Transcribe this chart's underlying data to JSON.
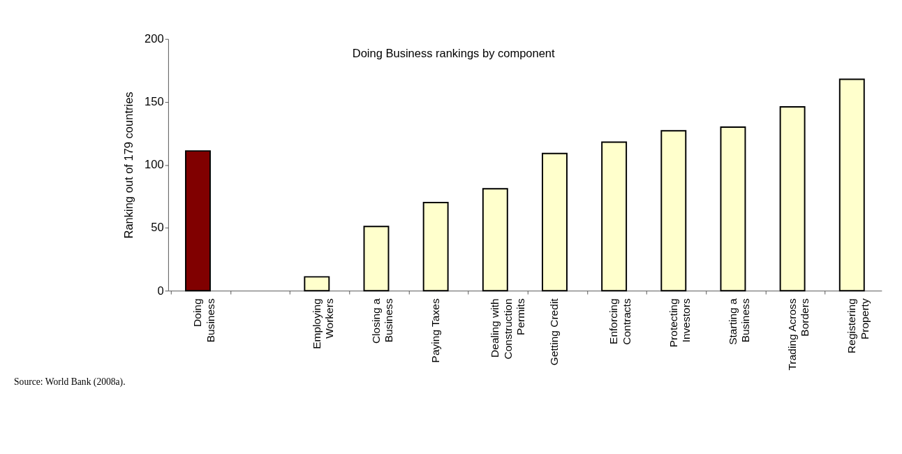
{
  "chart_data": {
    "type": "bar",
    "title": "Doing Business rankings by component",
    "ylabel": "Ranking out of 179 countries",
    "categories": [
      "Doing\nBusiness",
      null,
      "Employing\nWorkers",
      "Closing a\nBusiness",
      "Paying Taxes",
      "Dealing with\nConstruction\nPermits",
      "Getting Credit",
      "Enforcing\nContracts",
      "Protecting\nInvestors",
      "Starting a\nBusiness",
      "Trading Across\nBorders",
      "Registering\nProperty"
    ],
    "values": [
      111,
      null,
      11,
      51,
      70,
      81,
      109,
      118,
      127,
      130,
      146,
      168
    ],
    "colors": [
      "#800000",
      "#ffffcc",
      "#ffffcc",
      "#ffffcc",
      "#ffffcc",
      "#ffffcc",
      "#ffffcc",
      "#ffffcc",
      "#ffffcc",
      "#ffffcc",
      "#ffffcc",
      "#ffffcc"
    ],
    "ylim": [
      0,
      200
    ],
    "yticks": [
      0,
      50,
      100,
      150,
      200
    ],
    "grid": false,
    "annotations": [
      "Source: World Bank (2008a)."
    ]
  }
}
